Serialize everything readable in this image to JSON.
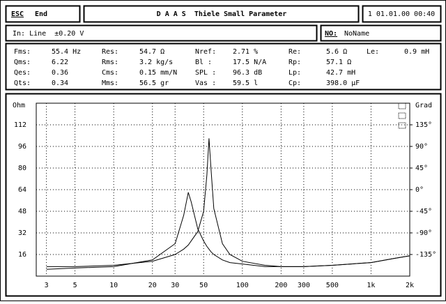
{
  "header": {
    "esc": "ESC",
    "end": "End",
    "title": "D A A S  Thiele Small Parameter",
    "datetime": "1 01.01.00 00:40"
  },
  "input": {
    "label": "In: Line  ±0.20 V",
    "name_key": "NO:",
    "name_value": "NoName"
  },
  "params": {
    "rows": [
      [
        [
          "Fms:",
          "55.4 Hz"
        ],
        [
          "Res:",
          "54.7 Ω"
        ],
        [
          "Nref:",
          "2.71 %"
        ],
        [
          "Re:",
          "5.6 Ω"
        ],
        [
          "Le:",
          "0.9 mH"
        ]
      ],
      [
        [
          "Qms:",
          "6.22"
        ],
        [
          "Rms:",
          "3.2 kg/s"
        ],
        [
          "Bl :",
          "17.5 N/A"
        ],
        [
          "Rp:",
          "57.1 Ω"
        ]
      ],
      [
        [
          "Qes:",
          "0.36"
        ],
        [
          "Cms:",
          "0.15 mm/N"
        ],
        [
          "SPL :",
          "96.3 dB"
        ],
        [
          "Lp:",
          "42.7 mH"
        ]
      ],
      [
        [
          "Qts:",
          "0.34"
        ],
        [
          "Mms:",
          "56.5 gr"
        ],
        [
          "Vas :",
          "59.5 l"
        ],
        [
          "Cp:",
          "398.0 µF"
        ]
      ]
    ]
  },
  "chart_data": {
    "type": "line",
    "y_label": "Ohm",
    "y2_label": "Grad",
    "xscale": "log",
    "grid": true,
    "x": [
      3,
      5,
      10,
      20,
      30,
      35,
      38,
      40,
      45,
      50,
      53,
      55,
      57,
      60,
      70,
      80,
      100,
      150,
      200,
      300,
      500,
      700,
      1000,
      1500,
      2000
    ],
    "series": [
      {
        "color": "#000000",
        "values": [
          7,
          7,
          8,
          11,
          16,
          20,
          23,
          26,
          33,
          48,
          75,
          102,
          80,
          50,
          24,
          16,
          11,
          8,
          7,
          7,
          8,
          9,
          10,
          13,
          15
        ]
      },
      {
        "color": "#000000",
        "values": [
          5,
          6,
          7,
          12,
          24,
          45,
          62,
          55,
          35,
          26,
          22,
          20,
          18,
          16,
          12,
          10,
          9,
          7,
          7,
          7,
          8,
          9,
          10,
          13,
          15
        ]
      }
    ],
    "xlim": [
      2.5,
      2000
    ],
    "xticks": [
      3,
      5,
      10,
      20,
      30,
      50,
      100,
      200,
      300,
      500,
      {
        "value": 1000,
        "label": "1k"
      },
      {
        "value": 2000,
        "label": "2k"
      }
    ],
    "ylim": [
      0,
      128
    ],
    "yticks": [
      16,
      32,
      48,
      64,
      80,
      96,
      112
    ],
    "y2lim": [
      -180,
      180
    ],
    "y2ticks": [
      {
        "value": 135,
        "label": "135°"
      },
      {
        "value": 90,
        "label": "90°"
      },
      {
        "value": 45,
        "label": "45°"
      },
      {
        "value": 0,
        "label": "0°"
      },
      {
        "value": -45,
        "label": "-45°"
      },
      {
        "value": -90,
        "label": "-90°"
      },
      {
        "value": -135,
        "label": "-135°"
      }
    ]
  }
}
